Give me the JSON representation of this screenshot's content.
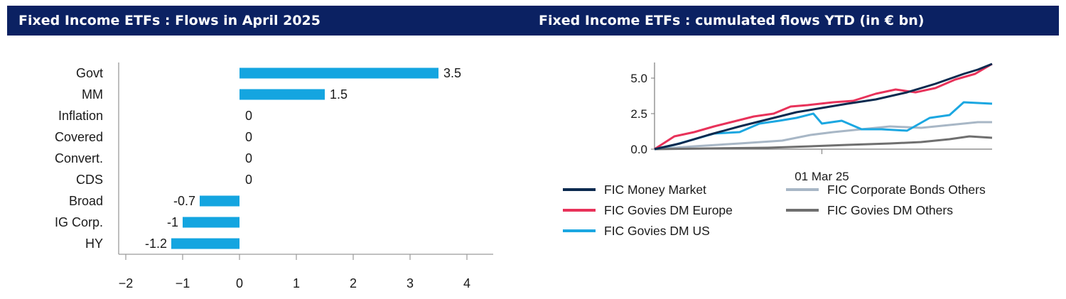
{
  "panels": [
    {
      "title": "Fixed Income ETFs : Flows in April 2025"
    },
    {
      "title": "Fixed Income ETFs : cumulated flows YTD (in € bn)"
    }
  ],
  "colors": {
    "banner": "#0b2162",
    "bar": "#14a5e0",
    "money_market": "#0b2a4f",
    "govies_dm_europe": "#e8325a",
    "govies_dm_us": "#1ba7e1",
    "corporate_bonds_others": "#a8b7c6",
    "govies_dm_others": "#6f6f6f"
  },
  "chart_data": [
    {
      "type": "bar",
      "orientation": "horizontal",
      "title": "Fixed Income ETFs : Flows in April 2025",
      "categories": [
        "Govt",
        "MM",
        "Inflation",
        "Covered",
        "Convert.",
        "CDS",
        "Broad",
        "IG Corp.",
        "HY"
      ],
      "values": [
        3.5,
        1.5,
        0,
        0,
        0,
        0,
        -0.7,
        -1,
        -1.2
      ],
      "value_labels": [
        "3.5",
        "1.5",
        "0",
        "0",
        "0",
        "0",
        "-0.7",
        "-1",
        "-1.2"
      ],
      "xlim": [
        -2,
        4.4
      ],
      "xticks": [
        -2,
        -1,
        0,
        1,
        2,
        3,
        4
      ],
      "xtick_labels": [
        "−2",
        "−1",
        "0",
        "1",
        "2",
        "3",
        "4"
      ],
      "grid": false
    },
    {
      "type": "line",
      "title": "Fixed Income ETFs : cumulated flows YTD (in € bn)",
      "x_range": [
        "2025-01-01",
        "2025-04-30"
      ],
      "xtick_labels": [
        {
          "date": "2025-03-01",
          "label": "01 Mar 25"
        }
      ],
      "ylim": [
        0,
        6.1
      ],
      "yticks": [
        0,
        2.5,
        5
      ],
      "ytick_labels": [
        "0.0",
        "2.5",
        "5.0"
      ],
      "legend_position": "bottom",
      "series": [
        {
          "name": "FIC Money Market",
          "color": "#0b2a4f",
          "points": [
            [
              "2025-01-01",
              0
            ],
            [
              "2025-01-10",
              0.4
            ],
            [
              "2025-01-20",
              1.0
            ],
            [
              "2025-01-31",
              1.6
            ],
            [
              "2025-02-10",
              2.1
            ],
            [
              "2025-02-20",
              2.6
            ],
            [
              "2025-03-01",
              2.9
            ],
            [
              "2025-03-10",
              3.2
            ],
            [
              "2025-03-20",
              3.5
            ],
            [
              "2025-03-31",
              4.0
            ],
            [
              "2025-04-10",
              4.6
            ],
            [
              "2025-04-20",
              5.3
            ],
            [
              "2025-04-25",
              5.6
            ],
            [
              "2025-04-30",
              6.0
            ]
          ]
        },
        {
          "name": "FIC Govies DM Europe",
          "color": "#e8325a",
          "points": [
            [
              "2025-01-01",
              0
            ],
            [
              "2025-01-08",
              0.9
            ],
            [
              "2025-01-15",
              1.2
            ],
            [
              "2025-01-22",
              1.6
            ],
            [
              "2025-01-28",
              1.9
            ],
            [
              "2025-02-05",
              2.3
            ],
            [
              "2025-02-12",
              2.5
            ],
            [
              "2025-02-18",
              3.0
            ],
            [
              "2025-02-24",
              3.1
            ],
            [
              "2025-03-05",
              3.3
            ],
            [
              "2025-03-12",
              3.4
            ],
            [
              "2025-03-20",
              3.9
            ],
            [
              "2025-03-27",
              4.2
            ],
            [
              "2025-04-03",
              4.0
            ],
            [
              "2025-04-10",
              4.3
            ],
            [
              "2025-04-17",
              4.9
            ],
            [
              "2025-04-24",
              5.3
            ],
            [
              "2025-04-30",
              6.0
            ]
          ]
        },
        {
          "name": "FIC Govies DM US",
          "color": "#1ba7e1",
          "points": [
            [
              "2025-01-01",
              0
            ],
            [
              "2025-01-08",
              0.3
            ],
            [
              "2025-01-15",
              0.7
            ],
            [
              "2025-01-22",
              1.1
            ],
            [
              "2025-01-31",
              1.2
            ],
            [
              "2025-02-07",
              1.8
            ],
            [
              "2025-02-14",
              2.0
            ],
            [
              "2025-02-20",
              2.2
            ],
            [
              "2025-02-26",
              2.5
            ],
            [
              "2025-03-01",
              1.8
            ],
            [
              "2025-03-08",
              2.0
            ],
            [
              "2025-03-15",
              1.4
            ],
            [
              "2025-03-22",
              1.4
            ],
            [
              "2025-03-31",
              1.3
            ],
            [
              "2025-04-08",
              2.2
            ],
            [
              "2025-04-15",
              2.4
            ],
            [
              "2025-04-20",
              3.3
            ],
            [
              "2025-04-30",
              3.2
            ]
          ]
        },
        {
          "name": "FIC Corporate Bonds Others",
          "color": "#a8b7c6",
          "points": [
            [
              "2025-01-01",
              0
            ],
            [
              "2025-01-15",
              0.2
            ],
            [
              "2025-01-31",
              0.4
            ],
            [
              "2025-02-15",
              0.6
            ],
            [
              "2025-02-25",
              1.0
            ],
            [
              "2025-03-05",
              1.2
            ],
            [
              "2025-03-15",
              1.4
            ],
            [
              "2025-03-25",
              1.6
            ],
            [
              "2025-04-05",
              1.5
            ],
            [
              "2025-04-15",
              1.7
            ],
            [
              "2025-04-25",
              1.9
            ],
            [
              "2025-04-30",
              1.9
            ]
          ]
        },
        {
          "name": "FIC Govies DM Others",
          "color": "#6f6f6f",
          "points": [
            [
              "2025-01-01",
              0
            ],
            [
              "2025-01-20",
              0.05
            ],
            [
              "2025-02-10",
              0.1
            ],
            [
              "2025-02-25",
              0.2
            ],
            [
              "2025-03-10",
              0.3
            ],
            [
              "2025-03-25",
              0.4
            ],
            [
              "2025-04-05",
              0.5
            ],
            [
              "2025-04-15",
              0.7
            ],
            [
              "2025-04-22",
              0.9
            ],
            [
              "2025-04-30",
              0.8
            ]
          ]
        }
      ]
    }
  ]
}
